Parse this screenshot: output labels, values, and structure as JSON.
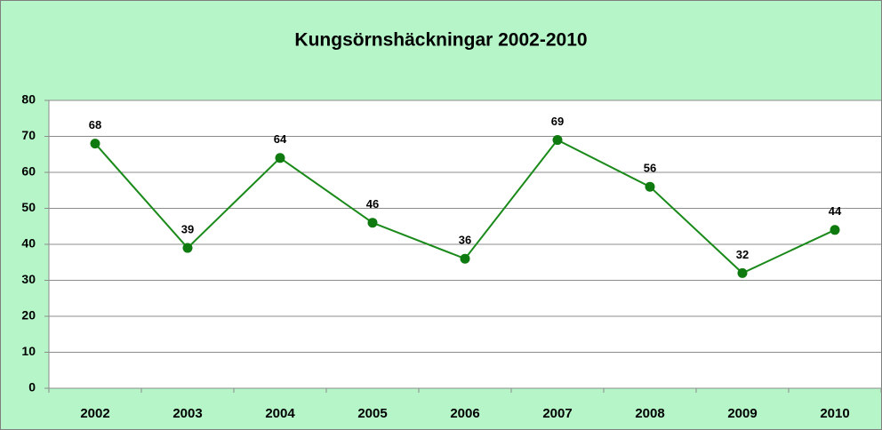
{
  "chart_data": {
    "type": "line",
    "title": "Kungsörnshäckningar 2002-2010",
    "categories": [
      "2002",
      "2003",
      "2004",
      "2005",
      "2006",
      "2007",
      "2008",
      "2009",
      "2010"
    ],
    "values": [
      68,
      39,
      64,
      46,
      36,
      69,
      56,
      32,
      44
    ],
    "color": "#1a8a1a",
    "marker_color": "#0f7a0f",
    "background": "#b5f5c8",
    "ylim": [
      0,
      80
    ],
    "yticks": [
      0,
      10,
      20,
      30,
      40,
      50,
      60,
      70,
      80
    ],
    "grid": true
  }
}
